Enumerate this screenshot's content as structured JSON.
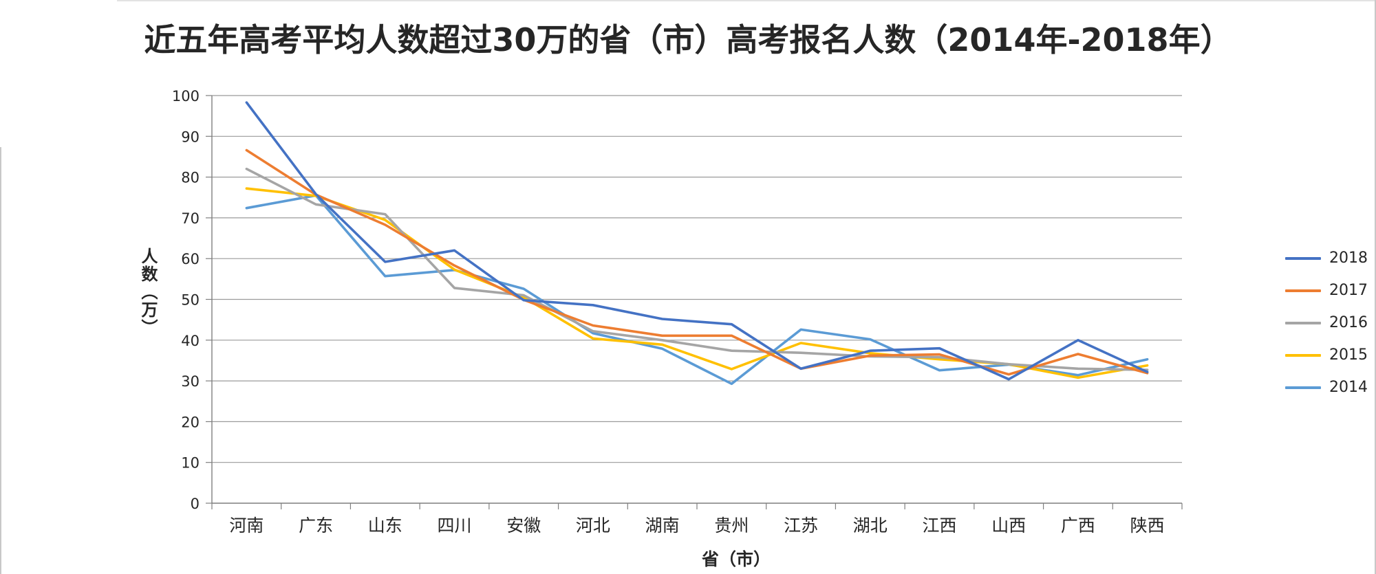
{
  "chart_data": {
    "type": "line",
    "title": "近五年高考平均人数超过30万的省（市）高考报名人数（2014年-2018年）",
    "xlabel": "省（市）",
    "ylabel": "人数（万）",
    "ylim": [
      0,
      100
    ],
    "ytick_step": 10,
    "grid": true,
    "legend_position": "right",
    "categories": [
      "河南",
      "广东",
      "山东",
      "四川",
      "安徽",
      "河北",
      "湖南",
      "贵州",
      "江苏",
      "湖北",
      "江西",
      "山西",
      "广西",
      "陕西"
    ],
    "series": [
      {
        "name": "2018",
        "color": "#4472C4",
        "values": [
          98.3,
          75.8,
          59.2,
          62.0,
          49.8,
          48.6,
          45.2,
          43.9,
          33.0,
          37.4,
          38.0,
          30.4,
          40.0,
          32.2
        ]
      },
      {
        "name": "2017",
        "color": "#ED7D31",
        "values": [
          86.6,
          75.7,
          68.3,
          58.3,
          49.9,
          43.6,
          41.1,
          41.1,
          33.0,
          36.2,
          36.5,
          31.6,
          36.6,
          31.9
        ]
      },
      {
        "name": "2016",
        "color": "#A5A5A5",
        "values": [
          82.0,
          73.3,
          70.9,
          52.8,
          51.0,
          42.2,
          40.0,
          37.4,
          36.9,
          36.0,
          35.8,
          34.1,
          33.0,
          32.7
        ]
      },
      {
        "name": "2015",
        "color": "#FFC000",
        "values": [
          77.2,
          75.4,
          69.5,
          57.3,
          50.5,
          40.4,
          38.9,
          32.9,
          39.3,
          36.8,
          35.3,
          34.1,
          30.8,
          33.8
        ]
      },
      {
        "name": "2014",
        "color": "#5B9BD5",
        "values": [
          72.4,
          75.5,
          55.7,
          57.2,
          52.6,
          41.7,
          37.9,
          29.3,
          42.6,
          40.2,
          32.6,
          34.0,
          31.4,
          35.3
        ]
      }
    ]
  }
}
